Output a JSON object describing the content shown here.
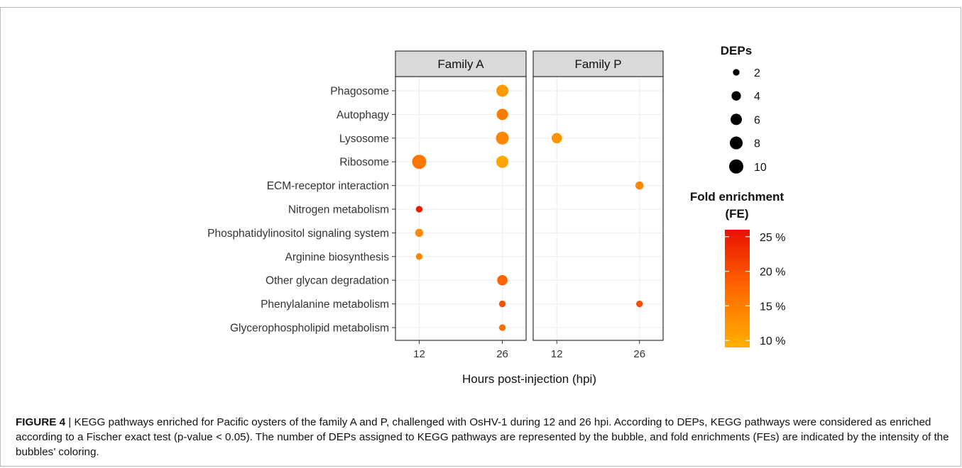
{
  "chart_data": {
    "type": "scatter",
    "subtype": "bubble",
    "facets": [
      "Family A",
      "Family P"
    ],
    "x_ticks": [
      12,
      26
    ],
    "xlabel": "Hours post-injection (hpi)",
    "pathways": [
      "Phagosome",
      "Autophagy",
      "Lysosome",
      "Ribosome",
      "ECM-receptor interaction",
      "Nitrogen metabolism",
      "Phosphatidylinositol signaling system",
      "Arginine biosynthesis",
      "Other glycan degradation",
      "Phenylalanine metabolism",
      "Glycerophospholipid metabolism"
    ],
    "points": [
      {
        "facet": "Family A",
        "hpi": 26,
        "pathway": "Phagosome",
        "deps": 7,
        "fe": 11.5
      },
      {
        "facet": "Family A",
        "hpi": 26,
        "pathway": "Autophagy",
        "deps": 6,
        "fe": 15.5
      },
      {
        "facet": "Family A",
        "hpi": 26,
        "pathway": "Lysosome",
        "deps": 8,
        "fe": 14
      },
      {
        "facet": "Family A",
        "hpi": 12,
        "pathway": "Ribosome",
        "deps": 10,
        "fe": 16
      },
      {
        "facet": "Family A",
        "hpi": 26,
        "pathway": "Ribosome",
        "deps": 7,
        "fe": 10.5
      },
      {
        "facet": "Family P",
        "hpi": 12,
        "pathway": "Lysosome",
        "deps": 5,
        "fe": 12.5
      },
      {
        "facet": "Family P",
        "hpi": 26,
        "pathway": "ECM-receptor interaction",
        "deps": 3,
        "fe": 14
      },
      {
        "facet": "Family A",
        "hpi": 12,
        "pathway": "Nitrogen metabolism",
        "deps": 2,
        "fe": 25
      },
      {
        "facet": "Family A",
        "hpi": 12,
        "pathway": "Phosphatidylinositol signaling system",
        "deps": 3,
        "fe": 13.5
      },
      {
        "facet": "Family A",
        "hpi": 12,
        "pathway": "Arginine biosynthesis",
        "deps": 2,
        "fe": 14.5
      },
      {
        "facet": "Family A",
        "hpi": 26,
        "pathway": "Other glycan degradation",
        "deps": 5,
        "fe": 18
      },
      {
        "facet": "Family A",
        "hpi": 26,
        "pathway": "Phenylalanine metabolism",
        "deps": 2,
        "fe": 20
      },
      {
        "facet": "Family P",
        "hpi": 26,
        "pathway": "Phenylalanine metabolism",
        "deps": 2,
        "fe": 20
      },
      {
        "facet": "Family A",
        "hpi": 26,
        "pathway": "Glycerophospholipid metabolism",
        "deps": 2,
        "fe": 17
      }
    ],
    "size_legend": {
      "title": "DEPs",
      "values": [
        2,
        4,
        6,
        8,
        10
      ],
      "labels": [
        "2",
        "4",
        "6",
        "8",
        "10"
      ]
    },
    "color_legend": {
      "title": "Fold enrichment",
      "subtitle": "(FE)",
      "range": [
        9,
        26
      ],
      "ticks": [
        10,
        15,
        20,
        25
      ],
      "tick_labels": [
        "10 %",
        "15 %",
        "20 %",
        "25 %"
      ],
      "color_low": "#FFB000",
      "color_mid": "#FF6A00",
      "color_high": "#E81000"
    },
    "panel_color": "#ffffff",
    "strip_color": "#d9d9d9",
    "grid_color": "#ececec"
  },
  "caption": {
    "label": "FIGURE 4",
    "separator": " | ",
    "text": "KEGG pathways enriched for Pacific oysters of the family A and P, challenged with OsHV-1 during 12 and 26 hpi. According to DEPs, KEGG pathways were considered as enriched according to a Fischer exact test (p-value < 0.05). The number of DEPs assigned to KEGG pathways are represented by the bubble, and fold enrichments (FEs) are indicated by the intensity of the bubbles’ coloring."
  }
}
